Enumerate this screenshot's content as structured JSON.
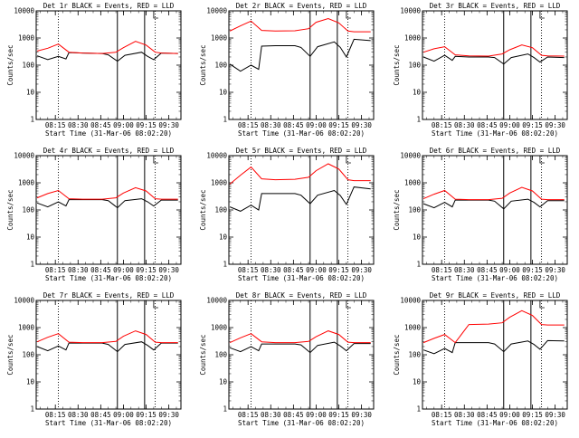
{
  "figure": {
    "ylabel": "Counts/sec",
    "xlabel": "Start Time (31-Mar-06 08:02:20)",
    "xticks": [
      "08:15",
      "08:30",
      "08:45",
      "09:00",
      "09:15",
      "09:30"
    ],
    "yticks": [
      "1",
      "10",
      "100",
      "1000",
      "10000"
    ],
    "colors": {
      "events": "#000000",
      "lld": "#ff0000"
    }
  },
  "chart_data": [
    {
      "type": "line",
      "title": "Det 1r BLACK = Events, RED = LLD",
      "yscale": "log",
      "ylim": [
        1,
        10000
      ],
      "xlim": [
        "08:02:20",
        "09:38"
      ],
      "series": [
        {
          "name": "BLACK = Events",
          "x": [
            "08:03",
            "08:10",
            "08:17",
            "08:22",
            "08:24",
            "08:33",
            "08:46",
            "08:50",
            "08:56",
            "09:01",
            "09:12",
            "09:16",
            "09:20",
            "09:25",
            "09:36"
          ],
          "y": [
            220,
            160,
            210,
            170,
            290,
            280,
            270,
            240,
            140,
            230,
            300,
            210,
            160,
            280,
            270
          ]
        },
        {
          "name": "RED = LLD",
          "x": [
            "08:03",
            "08:10",
            "08:17",
            "08:24",
            "08:33",
            "08:46",
            "08:55",
            "09:00",
            "09:08",
            "09:15",
            "09:21",
            "09:25",
            "09:36"
          ],
          "y": [
            330,
            420,
            600,
            300,
            280,
            270,
            300,
            440,
            750,
            550,
            300,
            280,
            270
          ]
        }
      ]
    },
    {
      "type": "line",
      "title": "Det 2r BLACK = Events, RED = LLD",
      "yscale": "log",
      "ylim": [
        1,
        10000
      ],
      "xlim": [
        "08:02:20",
        "09:38"
      ],
      "series": [
        {
          "name": "BLACK = Events",
          "x": [
            "08:03",
            "08:10",
            "08:17",
            "08:22",
            "08:24",
            "08:33",
            "08:46",
            "08:50",
            "08:56",
            "09:01",
            "09:12",
            "09:16",
            "09:20",
            "09:25",
            "09:36"
          ],
          "y": [
            110,
            60,
            100,
            70,
            500,
            520,
            520,
            450,
            210,
            480,
            720,
            450,
            200,
            900,
            800
          ]
        },
        {
          "name": "RED = LLD",
          "x": [
            "08:03",
            "08:10",
            "08:17",
            "08:24",
            "08:33",
            "08:46",
            "08:55",
            "09:00",
            "09:08",
            "09:15",
            "09:21",
            "09:25",
            "09:36"
          ],
          "y": [
            1800,
            2800,
            4200,
            1900,
            1800,
            1850,
            2200,
            3800,
            5200,
            3600,
            1800,
            1700,
            1700
          ]
        }
      ]
    },
    {
      "type": "line",
      "title": "Det 3r BLACK = Events, RED = LLD",
      "yscale": "log",
      "ylim": [
        1,
        10000
      ],
      "xlim": [
        "08:02:20",
        "09:38"
      ],
      "series": [
        {
          "name": "BLACK = Events",
          "x": [
            "08:03",
            "08:10",
            "08:17",
            "08:22",
            "08:24",
            "08:33",
            "08:46",
            "08:50",
            "08:56",
            "09:01",
            "09:12",
            "09:16",
            "09:20",
            "09:25",
            "09:36"
          ],
          "y": [
            200,
            140,
            230,
            150,
            210,
            200,
            200,
            190,
            110,
            190,
            260,
            190,
            130,
            200,
            190
          ]
        },
        {
          "name": "RED = LLD",
          "x": [
            "08:03",
            "08:10",
            "08:17",
            "08:24",
            "08:33",
            "08:46",
            "08:55",
            "09:00",
            "09:08",
            "09:15",
            "09:21",
            "09:25",
            "09:36"
          ],
          "y": [
            300,
            400,
            480,
            240,
            220,
            215,
            260,
            370,
            560,
            440,
            230,
            220,
            215
          ]
        }
      ]
    },
    {
      "type": "line",
      "title": "Det 4r BLACK = Events, RED = LLD",
      "yscale": "log",
      "ylim": [
        1,
        10000
      ],
      "xlim": [
        "08:02:20",
        "09:38"
      ],
      "series": [
        {
          "name": "BLACK = Events",
          "x": [
            "08:03",
            "08:10",
            "08:17",
            "08:22",
            "08:24",
            "08:33",
            "08:46",
            "08:50",
            "08:56",
            "09:01",
            "09:12",
            "09:16",
            "09:20",
            "09:25",
            "09:36"
          ],
          "y": [
            180,
            130,
            200,
            140,
            240,
            240,
            240,
            220,
            120,
            220,
            260,
            200,
            140,
            230,
            230
          ]
        },
        {
          "name": "RED = LLD",
          "x": [
            "08:03",
            "08:10",
            "08:17",
            "08:24",
            "08:33",
            "08:46",
            "08:55",
            "09:00",
            "09:08",
            "09:15",
            "09:21",
            "09:25",
            "09:36"
          ],
          "y": [
            280,
            400,
            520,
            260,
            250,
            250,
            280,
            420,
            660,
            500,
            260,
            250,
            250
          ]
        }
      ]
    },
    {
      "type": "line",
      "title": "Det 5r BLACK = Events, RED = LLD",
      "yscale": "log",
      "ylim": [
        1,
        10000
      ],
      "xlim": [
        "08:02:20",
        "09:38"
      ],
      "series": [
        {
          "name": "BLACK = Events",
          "x": [
            "08:03",
            "08:10",
            "08:17",
            "08:22",
            "08:24",
            "08:33",
            "08:46",
            "08:50",
            "08:56",
            "09:01",
            "09:12",
            "09:16",
            "09:20",
            "09:25",
            "09:36"
          ],
          "y": [
            130,
            90,
            150,
            100,
            400,
            400,
            400,
            350,
            170,
            350,
            520,
            340,
            160,
            700,
            600
          ]
        },
        {
          "name": "RED = LLD",
          "x": [
            "08:03",
            "08:10",
            "08:17",
            "08:24",
            "08:33",
            "08:46",
            "08:55",
            "09:00",
            "09:08",
            "09:15",
            "09:21",
            "09:25",
            "09:36"
          ],
          "y": [
            900,
            1900,
            3800,
            1400,
            1300,
            1350,
            1600,
            2800,
            5000,
            3200,
            1300,
            1200,
            1200
          ]
        }
      ]
    },
    {
      "type": "line",
      "title": "Det 6r BLACK = Events, RED = LLD",
      "yscale": "log",
      "ylim": [
        1,
        10000
      ],
      "xlim": [
        "08:02:20",
        "09:38"
      ],
      "series": [
        {
          "name": "BLACK = Events",
          "x": [
            "08:03",
            "08:10",
            "08:17",
            "08:22",
            "08:24",
            "08:33",
            "08:46",
            "08:50",
            "08:56",
            "09:01",
            "09:12",
            "09:16",
            "09:20",
            "09:25",
            "09:36"
          ],
          "y": [
            170,
            120,
            190,
            130,
            230,
            230,
            230,
            210,
            110,
            210,
            250,
            190,
            130,
            220,
            220
          ]
        },
        {
          "name": "RED = LLD",
          "x": [
            "08:03",
            "08:10",
            "08:17",
            "08:24",
            "08:33",
            "08:46",
            "08:55",
            "09:00",
            "09:08",
            "09:15",
            "09:21",
            "09:25",
            "09:36"
          ],
          "y": [
            260,
            380,
            520,
            250,
            240,
            240,
            270,
            420,
            680,
            500,
            250,
            240,
            240
          ]
        }
      ]
    },
    {
      "type": "line",
      "title": "Det 7r BLACK = Events, RED = LLD",
      "yscale": "log",
      "ylim": [
        1,
        10000
      ],
      "xlim": [
        "08:02:20",
        "09:38"
      ],
      "series": [
        {
          "name": "BLACK = Events",
          "x": [
            "08:03",
            "08:10",
            "08:17",
            "08:22",
            "08:24",
            "08:33",
            "08:46",
            "08:50",
            "08:56",
            "09:01",
            "09:12",
            "09:16",
            "09:20",
            "09:25",
            "09:36"
          ],
          "y": [
            200,
            140,
            210,
            150,
            270,
            270,
            270,
            240,
            130,
            240,
            300,
            220,
            150,
            270,
            270
          ]
        },
        {
          "name": "RED = LLD",
          "x": [
            "08:03",
            "08:10",
            "08:17",
            "08:24",
            "08:33",
            "08:46",
            "08:55",
            "09:00",
            "09:08",
            "09:15",
            "09:21",
            "09:25",
            "09:36"
          ],
          "y": [
            300,
            440,
            600,
            290,
            280,
            280,
            310,
            480,
            760,
            560,
            290,
            280,
            280
          ]
        }
      ]
    },
    {
      "type": "line",
      "title": "Det 8r BLACK = Events, RED = LLD",
      "yscale": "log",
      "ylim": [
        1,
        10000
      ],
      "xlim": [
        "08:02:20",
        "09:38"
      ],
      "series": [
        {
          "name": "BLACK = Events",
          "x": [
            "08:03",
            "08:10",
            "08:17",
            "08:22",
            "08:24",
            "08:33",
            "08:46",
            "08:50",
            "08:56",
            "09:01",
            "09:12",
            "09:16",
            "09:20",
            "09:25",
            "09:36"
          ],
          "y": [
            180,
            130,
            200,
            140,
            250,
            250,
            250,
            230,
            120,
            220,
            290,
            210,
            140,
            260,
            260
          ]
        },
        {
          "name": "RED = LLD",
          "x": [
            "08:03",
            "08:10",
            "08:17",
            "08:24",
            "08:33",
            "08:46",
            "08:55",
            "09:00",
            "09:08",
            "09:15",
            "09:21",
            "09:25",
            "09:36"
          ],
          "y": [
            280,
            420,
            600,
            300,
            280,
            280,
            310,
            460,
            760,
            560,
            290,
            280,
            280
          ]
        }
      ]
    },
    {
      "type": "line",
      "title": "Det 9r BLACK = Events, RED = LLD",
      "yscale": "log",
      "ylim": [
        1,
        10000
      ],
      "xlim": [
        "08:02:20",
        "09:38"
      ],
      "series": [
        {
          "name": "BLACK = Events",
          "x": [
            "08:03",
            "08:10",
            "08:17",
            "08:22",
            "08:24",
            "08:33",
            "08:46",
            "08:50",
            "08:56",
            "09:01",
            "09:12",
            "09:16",
            "09:20",
            "09:25",
            "09:36"
          ],
          "y": [
            150,
            110,
            170,
            120,
            280,
            280,
            280,
            250,
            130,
            250,
            320,
            240,
            160,
            330,
            320
          ]
        },
        {
          "name": "RED = LLD",
          "x": [
            "08:03",
            "08:10",
            "08:17",
            "08:24",
            "08:33",
            "08:46",
            "08:55",
            "09:00",
            "09:08",
            "09:15",
            "09:21",
            "09:25",
            "09:36"
          ],
          "y": [
            280,
            400,
            560,
            280,
            1300,
            1350,
            1500,
            2400,
            4200,
            2800,
            1300,
            1250,
            1250
          ]
        }
      ]
    }
  ]
}
